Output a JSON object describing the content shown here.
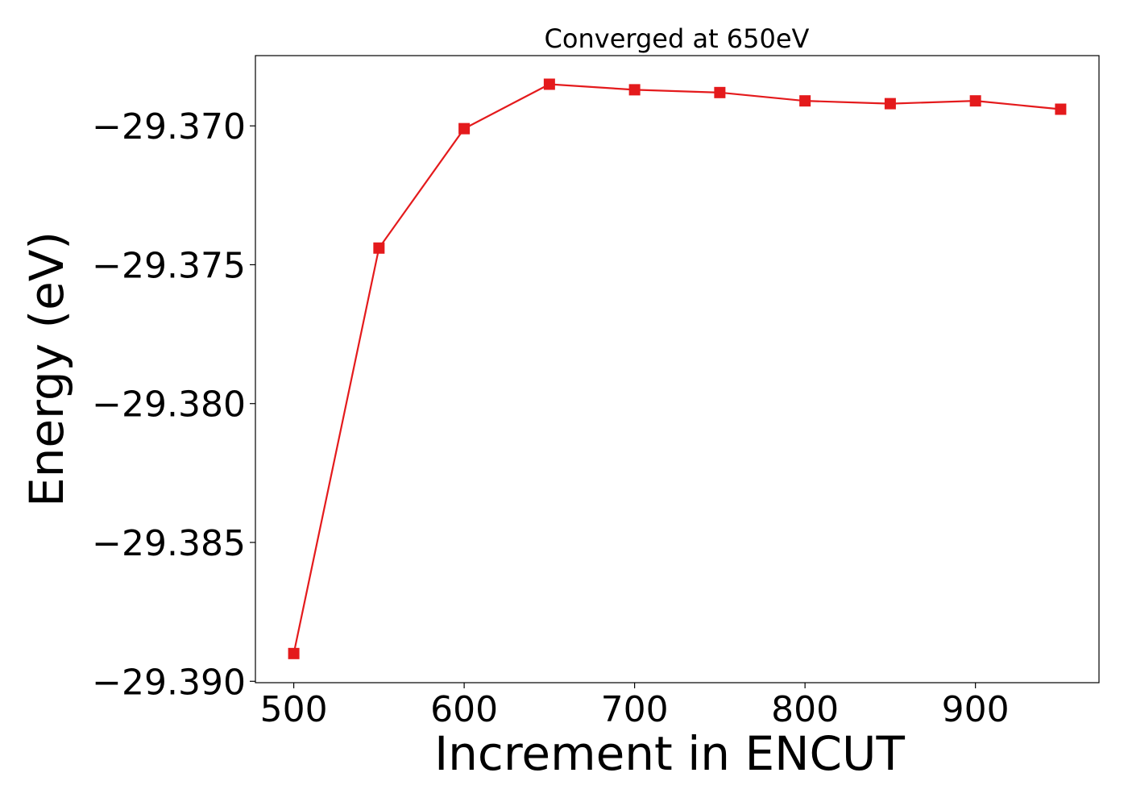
{
  "chart_data": {
    "type": "line",
    "title": "Converged at 650eV",
    "xlabel": "Increment in ENCUT",
    "ylabel": "Energy (eV)",
    "x": [
      500,
      550,
      600,
      650,
      700,
      750,
      800,
      850,
      900,
      950
    ],
    "series": [
      {
        "values": [
          -29.389,
          -29.3744,
          -29.3701,
          -29.3685,
          -29.3687,
          -29.3688,
          -29.3691,
          -29.3692,
          -29.3691,
          -29.3694
        ],
        "color": "#e41a1c",
        "marker": "square"
      }
    ],
    "xlim": [
      477.5,
      972.5
    ],
    "ylim": [
      -29.39005,
      -29.36747
    ],
    "xticks": [
      500,
      600,
      700,
      800,
      900
    ],
    "xtick_labels": [
      "500",
      "600",
      "700",
      "800",
      "900"
    ],
    "yticks": [
      -29.37,
      -29.375,
      -29.38,
      -29.385,
      -29.39
    ],
    "ytick_labels": [
      "−29.370",
      "−29.375",
      "−29.380",
      "−29.385",
      "−29.390"
    ],
    "grid": false,
    "legend": "none"
  }
}
